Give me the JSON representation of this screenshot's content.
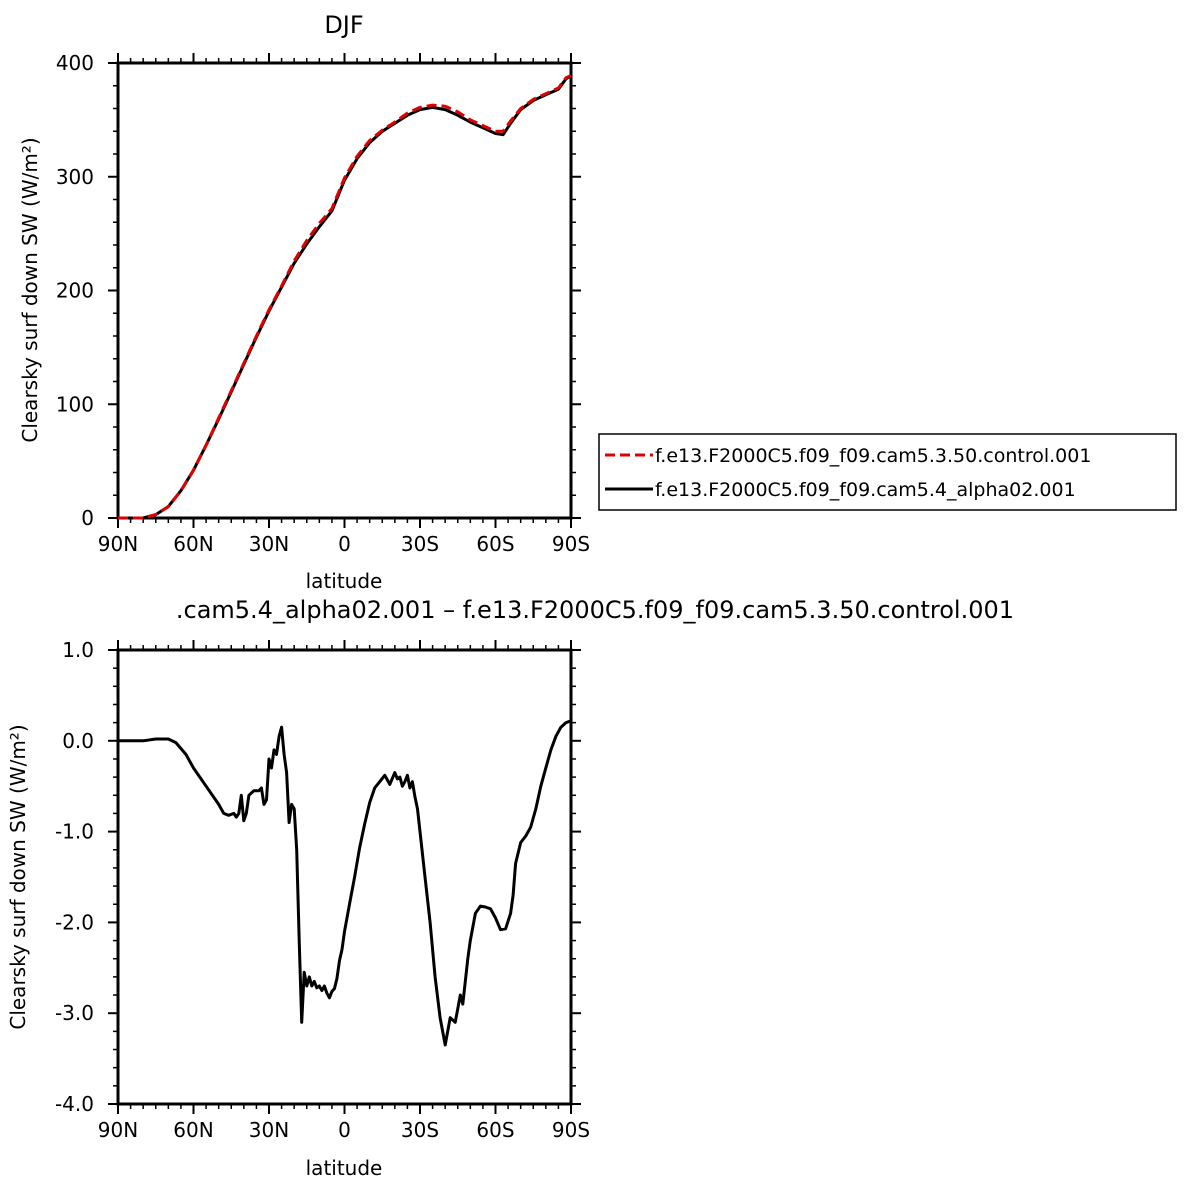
{
  "colors": {
    "control": "#e00000",
    "alpha": "#000000",
    "diff": "#000000"
  },
  "legend": {
    "control_label": "f.e13.F2000C5.f09_f09.cam5.3.50.control.001",
    "alpha_label": "f.e13.F2000C5.f09_f09.cam5.4_alpha02.001"
  },
  "chart_data": [
    {
      "type": "line",
      "title": "DJF",
      "xlabel": "latitude",
      "ylabel": "Clearsky surf down SW (W/m²)",
      "xlim": [
        90,
        -90
      ],
      "ylim": [
        0,
        400
      ],
      "xticks": [
        90,
        60,
        30,
        0,
        -30,
        -60,
        -90
      ],
      "xtick_labels": [
        "90N",
        "60N",
        "30N",
        "0",
        "30S",
        "60S",
        "90S"
      ],
      "yticks": [
        0,
        100,
        200,
        300,
        400
      ],
      "ytick_labels": [
        "0",
        "100",
        "200",
        "300",
        "400"
      ],
      "grid": false,
      "legend_position": "right",
      "series": [
        {
          "name": "f.e13.F2000C5.f09_f09.cam5.3.50.control.001",
          "style": "dashed",
          "x": [
            90,
            80,
            75,
            70,
            65,
            60,
            55,
            50,
            45,
            40,
            35,
            30,
            25,
            20,
            15,
            10,
            5,
            0,
            -5,
            -10,
            -15,
            -20,
            -25,
            -30,
            -35,
            -40,
            -45,
            -50,
            -55,
            -60,
            -63,
            -66,
            -70,
            -75,
            -80,
            -85,
            -88,
            -90
          ],
          "y": [
            0,
            0,
            3,
            10,
            24,
            42,
            64,
            88,
            112,
            136,
            160,
            183,
            204,
            226,
            244,
            259,
            272,
            299,
            318,
            332,
            341,
            348,
            356,
            361,
            363,
            362,
            357,
            350,
            345,
            340,
            340,
            349,
            360,
            368,
            373,
            378,
            387,
            389
          ]
        },
        {
          "name": "f.e13.F2000C5.f09_f09.cam5.4_alpha02.001",
          "style": "solid",
          "x": [
            90,
            80,
            75,
            70,
            65,
            60,
            55,
            50,
            45,
            40,
            35,
            30,
            25,
            20,
            15,
            10,
            5,
            0,
            -5,
            -10,
            -15,
            -20,
            -25,
            -30,
            -35,
            -40,
            -45,
            -50,
            -55,
            -60,
            -63,
            -66,
            -70,
            -75,
            -80,
            -85,
            -88,
            -90
          ],
          "y": [
            0,
            0,
            3,
            10,
            24,
            42,
            64,
            87,
            111,
            135,
            159,
            182,
            203,
            224,
            241,
            256,
            270,
            297,
            316,
            330,
            340,
            347,
            354,
            359,
            361,
            359,
            354,
            348,
            343,
            338,
            337,
            347,
            359,
            367,
            372,
            377,
            386,
            389
          ]
        }
      ]
    },
    {
      "type": "line",
      "title": ".cam5.4_alpha02.001 – f.e13.F2000C5.f09_f09.cam5.3.50.control.001",
      "xlabel": "latitude",
      "ylabel": "Clearsky surf down SW (W/m²)",
      "xlim": [
        90,
        -90
      ],
      "ylim": [
        -4.0,
        1.0
      ],
      "xticks": [
        90,
        60,
        30,
        0,
        -30,
        -60,
        -90
      ],
      "xtick_labels": [
        "90N",
        "60N",
        "30N",
        "0",
        "30S",
        "60S",
        "90S"
      ],
      "yticks": [
        1.0,
        0.0,
        -1.0,
        -2.0,
        -3.0,
        -4.0
      ],
      "ytick_labels": [
        "1.0",
        "0.0",
        "-1.0",
        "-2.0",
        "-3.0",
        "-4.0"
      ],
      "grid": false,
      "series": [
        {
          "style": "solid",
          "x": [
            90,
            80,
            75,
            70,
            67,
            63,
            60,
            55,
            50,
            48,
            46,
            44,
            43,
            42,
            41,
            40,
            39,
            38,
            36,
            34,
            33,
            32,
            31,
            30,
            29,
            28,
            27,
            26,
            25,
            24,
            23,
            22,
            21,
            20,
            19,
            18,
            17,
            16,
            15,
            14,
            13,
            12,
            11,
            10,
            9,
            8,
            7,
            6,
            5,
            4,
            3,
            2,
            1,
            0,
            -2,
            -4,
            -6,
            -8,
            -10,
            -12,
            -14,
            -16,
            -18,
            -20,
            -21,
            -22,
            -23,
            -24,
            -25,
            -26,
            -27,
            -28,
            -29,
            -30,
            -32,
            -34,
            -36,
            -38,
            -40,
            -42,
            -44,
            -45,
            -46,
            -47,
            -48,
            -49,
            -50,
            -52,
            -54,
            -56,
            -58,
            -60,
            -62,
            -64,
            -66,
            -67,
            -68,
            -70,
            -72,
            -74,
            -76,
            -78,
            -80,
            -82,
            -84,
            -86,
            -88,
            -90
          ],
          "y": [
            0.0,
            0.0,
            0.02,
            0.02,
            -0.02,
            -0.15,
            -0.3,
            -0.5,
            -0.7,
            -0.8,
            -0.82,
            -0.8,
            -0.84,
            -0.8,
            -0.6,
            -0.88,
            -0.8,
            -0.6,
            -0.55,
            -0.55,
            -0.52,
            -0.7,
            -0.65,
            -0.2,
            -0.3,
            -0.1,
            -0.15,
            0.05,
            0.15,
            -0.15,
            -0.35,
            -0.9,
            -0.7,
            -0.75,
            -1.2,
            -2.2,
            -3.1,
            -2.55,
            -2.7,
            -2.6,
            -2.7,
            -2.65,
            -2.72,
            -2.7,
            -2.75,
            -2.7,
            -2.78,
            -2.83,
            -2.76,
            -2.73,
            -2.62,
            -2.42,
            -2.3,
            -2.1,
            -1.8,
            -1.5,
            -1.18,
            -0.92,
            -0.68,
            -0.52,
            -0.45,
            -0.38,
            -0.48,
            -0.35,
            -0.42,
            -0.4,
            -0.5,
            -0.45,
            -0.38,
            -0.52,
            -0.45,
            -0.62,
            -0.75,
            -1.0,
            -1.5,
            -2.0,
            -2.6,
            -3.05,
            -3.35,
            -3.05,
            -3.1,
            -2.95,
            -2.8,
            -2.9,
            -2.65,
            -2.4,
            -2.2,
            -1.9,
            -1.82,
            -1.83,
            -1.85,
            -1.95,
            -2.08,
            -2.07,
            -1.9,
            -1.7,
            -1.35,
            -1.12,
            -1.05,
            -0.95,
            -0.75,
            -0.5,
            -0.3,
            -0.1,
            0.05,
            0.15,
            0.2,
            0.22
          ]
        }
      ]
    }
  ]
}
